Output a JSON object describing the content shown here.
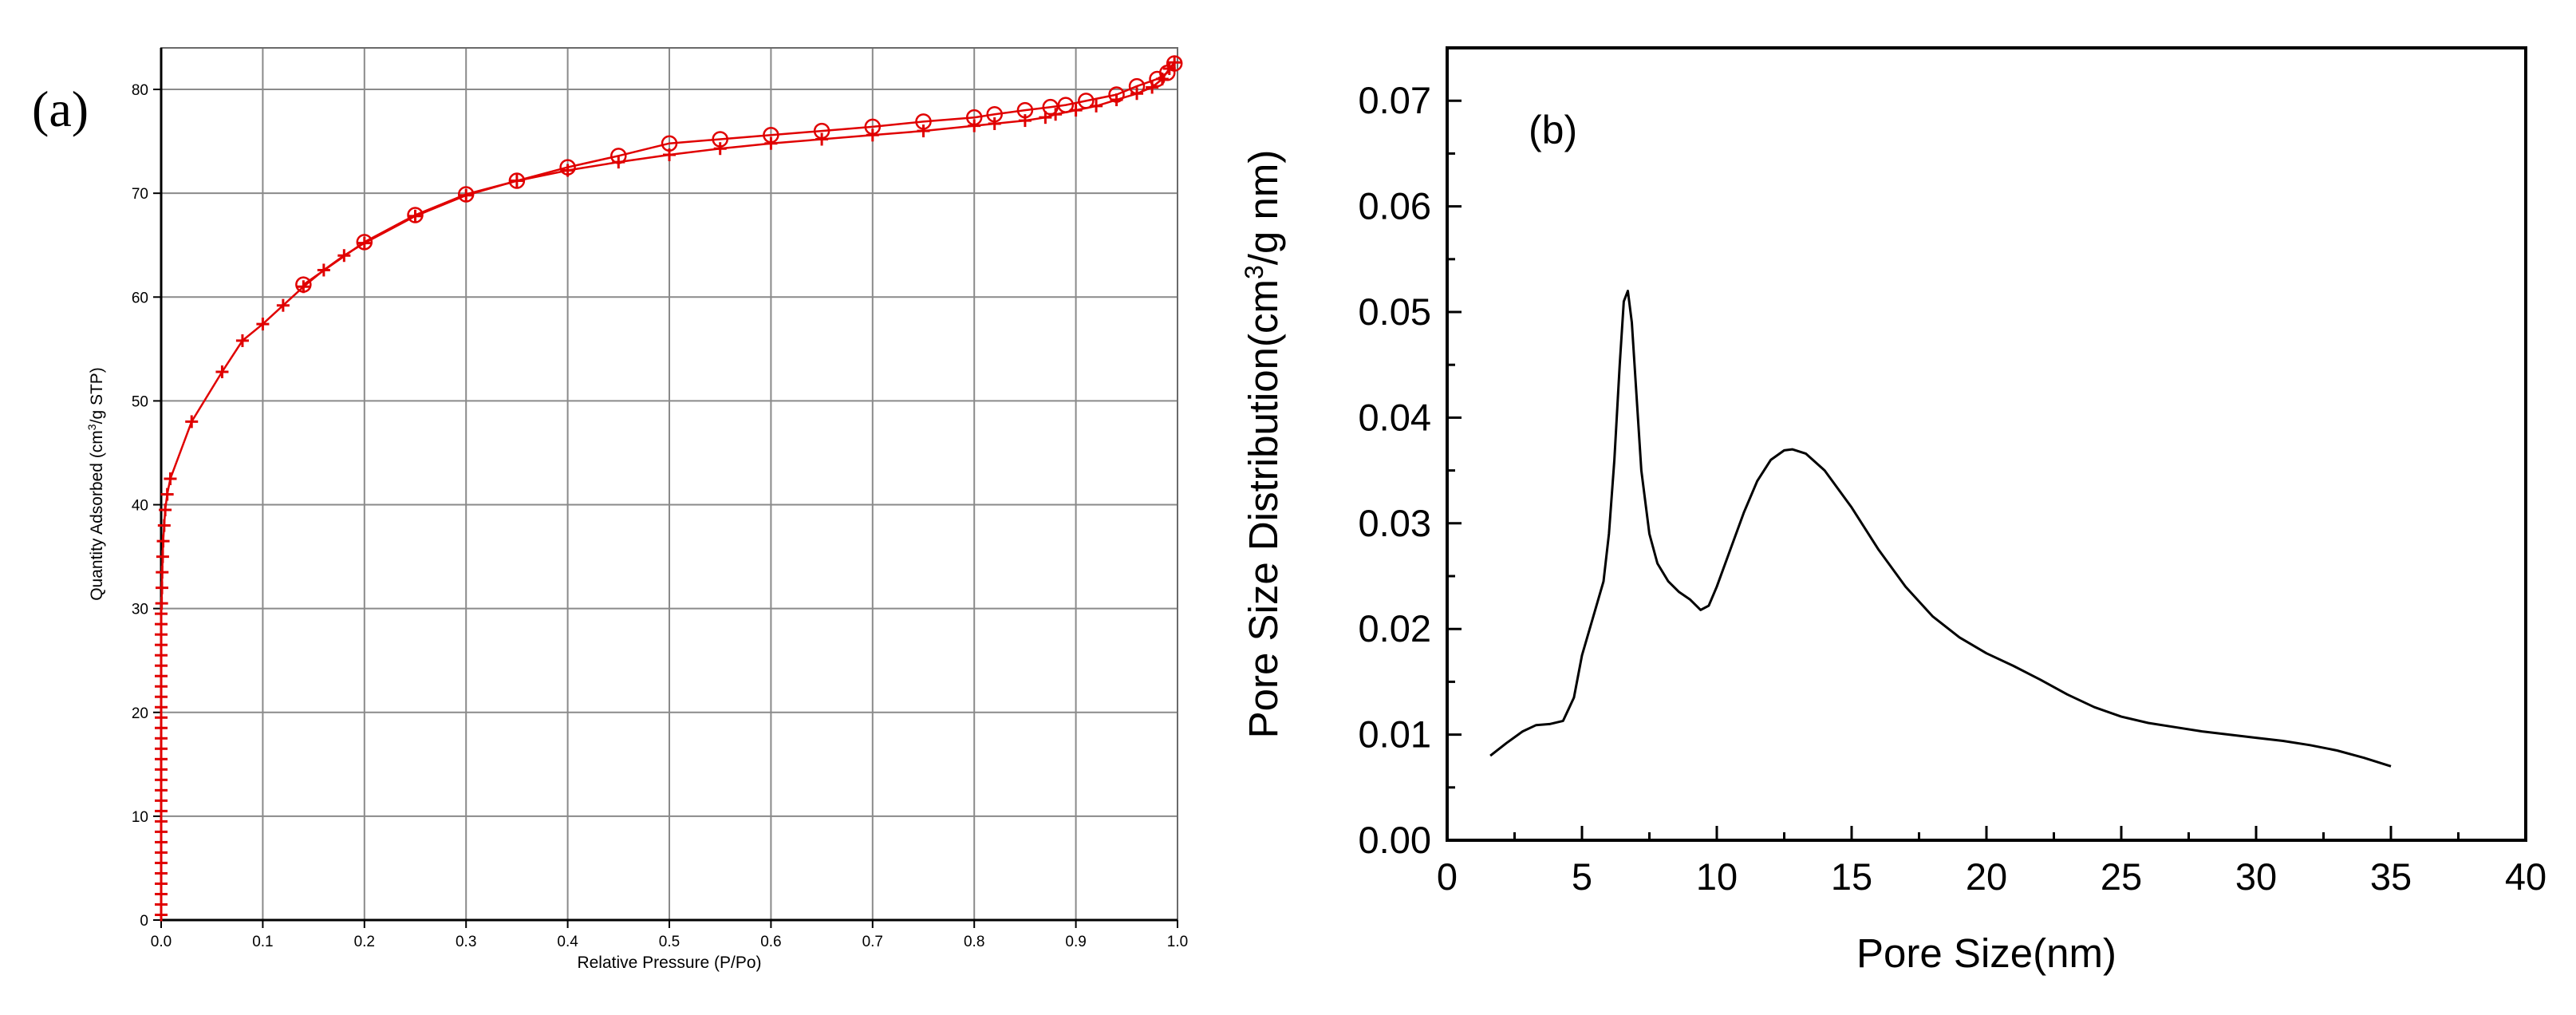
{
  "chart_data": [
    {
      "panel": "(a)",
      "type": "line",
      "xlabel": "Relative Pressure (P/Po)",
      "ylabel_parts": [
        "Quantity Adsorbed (cm",
        "3",
        "/g STP)"
      ],
      "xlim": [
        0,
        1.0
      ],
      "ylim": [
        0,
        84
      ],
      "xticks": [
        "0.0",
        "0.1",
        "0.2",
        "0.3",
        "0.4",
        "0.5",
        "0.6",
        "0.7",
        "0.8",
        "0.9",
        "1.0"
      ],
      "yticks": [
        "0",
        "10",
        "20",
        "30",
        "40",
        "50",
        "60",
        "70",
        "80"
      ],
      "grid": true,
      "color": "#e00000",
      "series": [
        {
          "marker": "plus",
          "points": [
            [
              0.0,
              0.5
            ],
            [
              0.0,
              1.5
            ],
            [
              0.0,
              2.5
            ],
            [
              0.0,
              3.5
            ],
            [
              0.0,
              4.5
            ],
            [
              0.0,
              5.5
            ],
            [
              0.0,
              6.5
            ],
            [
              0.0,
              7.5
            ],
            [
              0.0,
              8.5
            ],
            [
              0.0,
              9.5
            ],
            [
              0.0,
              10.5
            ],
            [
              0.0,
              11.5
            ],
            [
              0.0,
              12.5
            ],
            [
              0.0,
              13.5
            ],
            [
              0.0,
              14.5
            ],
            [
              0.0,
              15.5
            ],
            [
              0.0,
              16.5
            ],
            [
              0.0,
              17.5
            ],
            [
              0.0,
              18.5
            ],
            [
              0.0,
              19.5
            ],
            [
              0.0,
              20.5
            ],
            [
              0.0,
              21.5
            ],
            [
              0.0,
              22.5
            ],
            [
              0.0,
              23.5
            ],
            [
              0.0,
              24.5
            ],
            [
              0.0,
              25.5
            ],
            [
              0.0,
              26.5
            ],
            [
              0.0,
              27.5
            ],
            [
              0.0,
              28.5
            ],
            [
              0.0,
              29.5
            ],
            [
              0.0005,
              30.5
            ],
            [
              0.0008,
              32
            ],
            [
              0.001,
              33.5
            ],
            [
              0.0015,
              35
            ],
            [
              0.002,
              36.5
            ],
            [
              0.003,
              38
            ],
            [
              0.004,
              39.5
            ],
            [
              0.006,
              41
            ],
            [
              0.009,
              42.5
            ],
            [
              0.03,
              48
            ],
            [
              0.06,
              52.8
            ],
            [
              0.08,
              55.8
            ],
            [
              0.1,
              57.4
            ],
            [
              0.12,
              59.2
            ],
            [
              0.14,
              61
            ],
            [
              0.16,
              62.6
            ],
            [
              0.18,
              64
            ],
            [
              0.2,
              65.2
            ],
            [
              0.25,
              67.8
            ],
            [
              0.3,
              69.8
            ],
            [
              0.35,
              71.2
            ],
            [
              0.4,
              72.2
            ],
            [
              0.45,
              73
            ],
            [
              0.5,
              73.7
            ],
            [
              0.55,
              74.3
            ],
            [
              0.6,
              74.8
            ],
            [
              0.65,
              75.2
            ],
            [
              0.7,
              75.6
            ],
            [
              0.75,
              76
            ],
            [
              0.8,
              76.5
            ],
            [
              0.82,
              76.7
            ],
            [
              0.85,
              77
            ],
            [
              0.87,
              77.3
            ],
            [
              0.88,
              77.6
            ],
            [
              0.9,
              78
            ],
            [
              0.92,
              78.4
            ],
            [
              0.94,
              79
            ],
            [
              0.96,
              79.6
            ],
            [
              0.975,
              80.2
            ],
            [
              0.985,
              81
            ],
            [
              0.992,
              82
            ],
            [
              0.997,
              82.6
            ]
          ]
        },
        {
          "marker": "circle",
          "points": [
            [
              0.997,
              82.5
            ],
            [
              0.99,
              81.6
            ],
            [
              0.98,
              81
            ],
            [
              0.96,
              80.3
            ],
            [
              0.94,
              79.5
            ],
            [
              0.91,
              78.9
            ],
            [
              0.89,
              78.5
            ],
            [
              0.875,
              78.3
            ],
            [
              0.85,
              78
            ],
            [
              0.82,
              77.6
            ],
            [
              0.8,
              77.3
            ],
            [
              0.75,
              76.9
            ],
            [
              0.7,
              76.4
            ],
            [
              0.65,
              76
            ],
            [
              0.6,
              75.6
            ],
            [
              0.55,
              75.2
            ],
            [
              0.5,
              74.8
            ],
            [
              0.45,
              73.6
            ],
            [
              0.4,
              72.5
            ],
            [
              0.35,
              71.2
            ],
            [
              0.3,
              69.9
            ],
            [
              0.25,
              67.9
            ],
            [
              0.2,
              65.3
            ],
            [
              0.14,
              61.2
            ]
          ]
        }
      ]
    },
    {
      "panel": "(b)",
      "type": "line",
      "xlabel": "Pore Size(nm)",
      "ylabel_parts": [
        "Pore Size Distribution(cm",
        "3",
        "/g nm)"
      ],
      "xlim": [
        0,
        40
      ],
      "ylim": [
        0,
        0.075
      ],
      "xticks": [
        "0",
        "5",
        "10",
        "15",
        "20",
        "25",
        "30",
        "35",
        "40"
      ],
      "yticks": [
        "0.00",
        "0.01",
        "0.02",
        "0.03",
        "0.04",
        "0.05",
        "0.06",
        "0.07"
      ],
      "grid": false,
      "color": "#000000",
      "series": [
        {
          "marker": "none",
          "points": [
            [
              1.6,
              0.008
            ],
            [
              2.2,
              0.0092
            ],
            [
              2.8,
              0.0103
            ],
            [
              3.3,
              0.0109
            ],
            [
              3.8,
              0.011
            ],
            [
              4.3,
              0.0113
            ],
            [
              4.7,
              0.0135
            ],
            [
              5.0,
              0.0175
            ],
            [
              5.4,
              0.021
            ],
            [
              5.8,
              0.0245
            ],
            [
              6.0,
              0.029
            ],
            [
              6.2,
              0.036
            ],
            [
              6.4,
              0.045
            ],
            [
              6.55,
              0.051
            ],
            [
              6.7,
              0.052
            ],
            [
              6.85,
              0.049
            ],
            [
              7.0,
              0.043
            ],
            [
              7.2,
              0.035
            ],
            [
              7.5,
              0.029
            ],
            [
              7.8,
              0.0262
            ],
            [
              8.2,
              0.0245
            ],
            [
              8.6,
              0.0235
            ],
            [
              9.0,
              0.0228
            ],
            [
              9.4,
              0.0218
            ],
            [
              9.7,
              0.0222
            ],
            [
              10.0,
              0.024
            ],
            [
              10.5,
              0.0275
            ],
            [
              11.0,
              0.031
            ],
            [
              11.5,
              0.034
            ],
            [
              12.0,
              0.036
            ],
            [
              12.5,
              0.0369
            ],
            [
              12.8,
              0.037
            ],
            [
              13.3,
              0.0366
            ],
            [
              14.0,
              0.035
            ],
            [
              15.0,
              0.0315
            ],
            [
              16.0,
              0.0275
            ],
            [
              17.0,
              0.024
            ],
            [
              18.0,
              0.0212
            ],
            [
              19.0,
              0.0192
            ],
            [
              20.0,
              0.0177
            ],
            [
              21.0,
              0.0165
            ],
            [
              22.0,
              0.0152
            ],
            [
              23.0,
              0.0138
            ],
            [
              24.0,
              0.0126
            ],
            [
              25.0,
              0.0117
            ],
            [
              26.0,
              0.0111
            ],
            [
              27.0,
              0.0107
            ],
            [
              28.0,
              0.0103
            ],
            [
              29.0,
              0.01
            ],
            [
              30.0,
              0.0097
            ],
            [
              31.0,
              0.0094
            ],
            [
              32.0,
              0.009
            ],
            [
              33.0,
              0.0085
            ],
            [
              34.0,
              0.0078
            ],
            [
              35.0,
              0.007
            ]
          ]
        }
      ]
    }
  ]
}
